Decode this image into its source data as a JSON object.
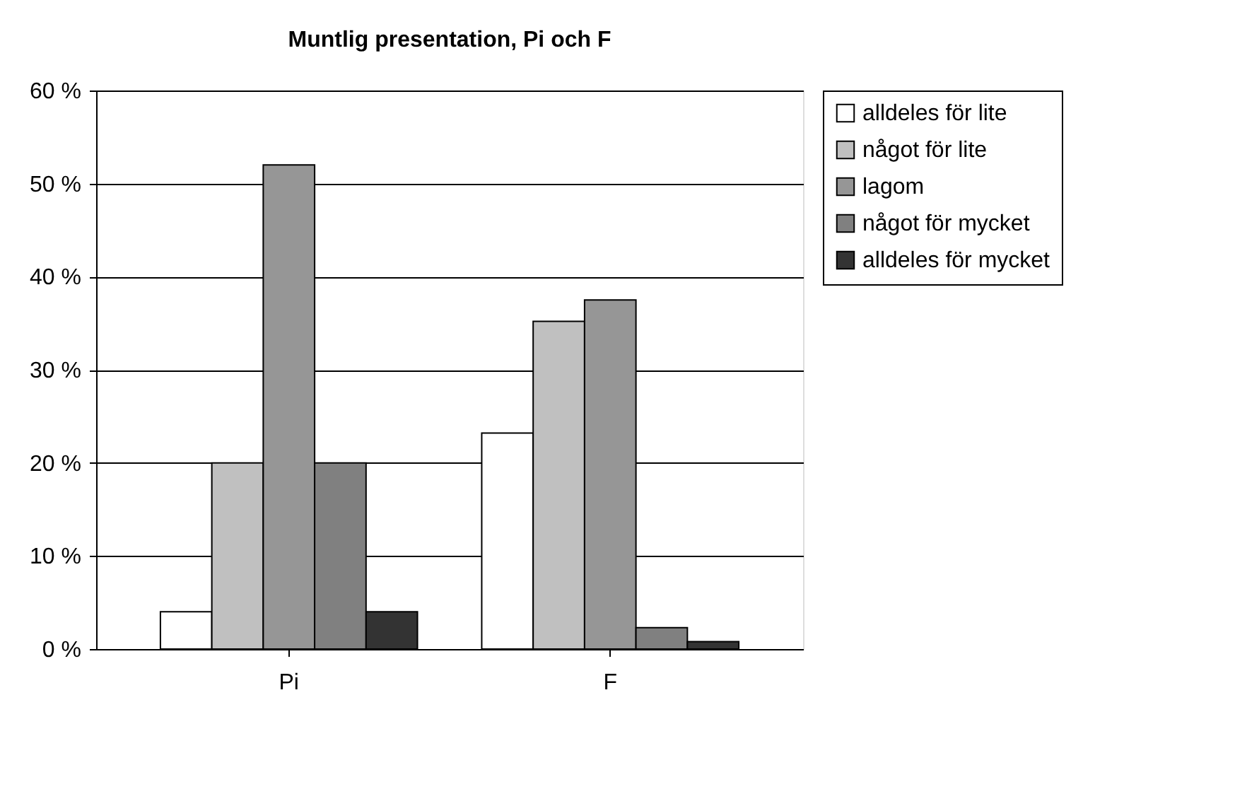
{
  "chart_data": {
    "type": "bar",
    "title": "Muntlig presentation, Pi och F",
    "categories": [
      "Pi",
      "F"
    ],
    "series": [
      {
        "name": "alldeles för lite",
        "color": "#ffffff",
        "values": [
          4,
          23.2
        ]
      },
      {
        "name": "något för lite",
        "color": "#c0c0c0",
        "values": [
          20,
          35.2
        ]
      },
      {
        "name": "lagom",
        "color": "#969696",
        "values": [
          52,
          37.5
        ]
      },
      {
        "name": "något för mycket",
        "color": "#808080",
        "values": [
          20,
          2.3
        ]
      },
      {
        "name": "alldeles för mycket",
        "color": "#333333",
        "values": [
          4,
          0.8
        ]
      }
    ],
    "ylim": [
      0,
      60
    ],
    "yticks": [
      {
        "value": 0,
        "label": "0 %"
      },
      {
        "value": 10,
        "label": "10 %"
      },
      {
        "value": 20,
        "label": "20 %"
      },
      {
        "value": 30,
        "label": "30 %"
      },
      {
        "value": 40,
        "label": "40 %"
      },
      {
        "value": 50,
        "label": "50 %"
      },
      {
        "value": 60,
        "label": "60 %"
      }
    ],
    "grid": "y",
    "legend": "right"
  }
}
